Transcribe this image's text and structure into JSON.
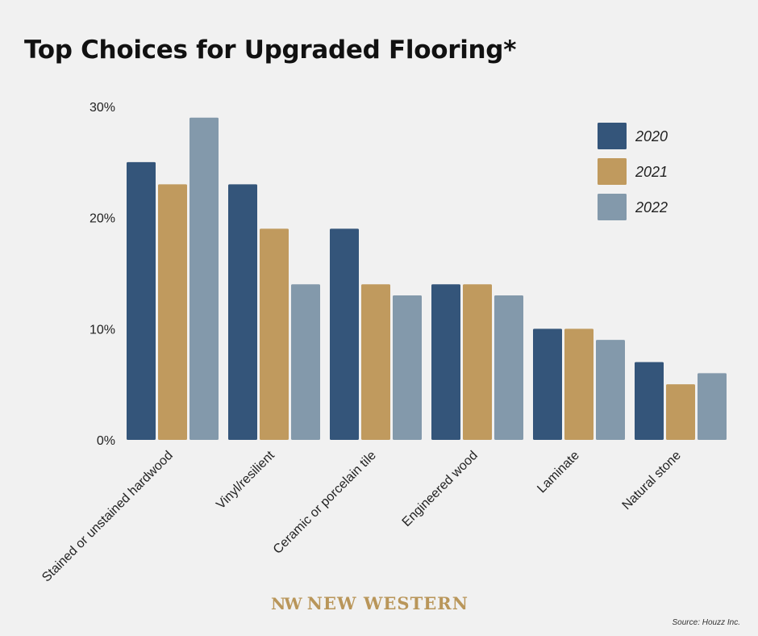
{
  "chart_data": {
    "type": "bar",
    "title": "Top Choices for Upgraded Flooring*",
    "categories": [
      "Stained or unstained hardwood",
      "Vinyl/resilient",
      "Ceramic or porcelain tile",
      "Engineered wood",
      "Laminate",
      "Natural stone"
    ],
    "series": [
      {
        "name": "2020",
        "color": "#34557a",
        "values": [
          25,
          23,
          19,
          14,
          10,
          7
        ]
      },
      {
        "name": "2021",
        "color": "#c09a5e",
        "values": [
          23,
          19,
          14,
          14,
          10,
          5
        ]
      },
      {
        "name": "2022",
        "color": "#8399ab",
        "values": [
          29,
          14,
          13,
          13,
          9,
          6
        ]
      }
    ],
    "yticks": [
      "0%",
      "10%",
      "20%",
      "30%"
    ],
    "ylim": [
      0,
      30
    ],
    "legend_position": "top-right",
    "grid": false
  },
  "branding": {
    "logo_mark": "NW",
    "logo_text": "NEW WESTERN",
    "source": "Source: Houzz Inc."
  }
}
